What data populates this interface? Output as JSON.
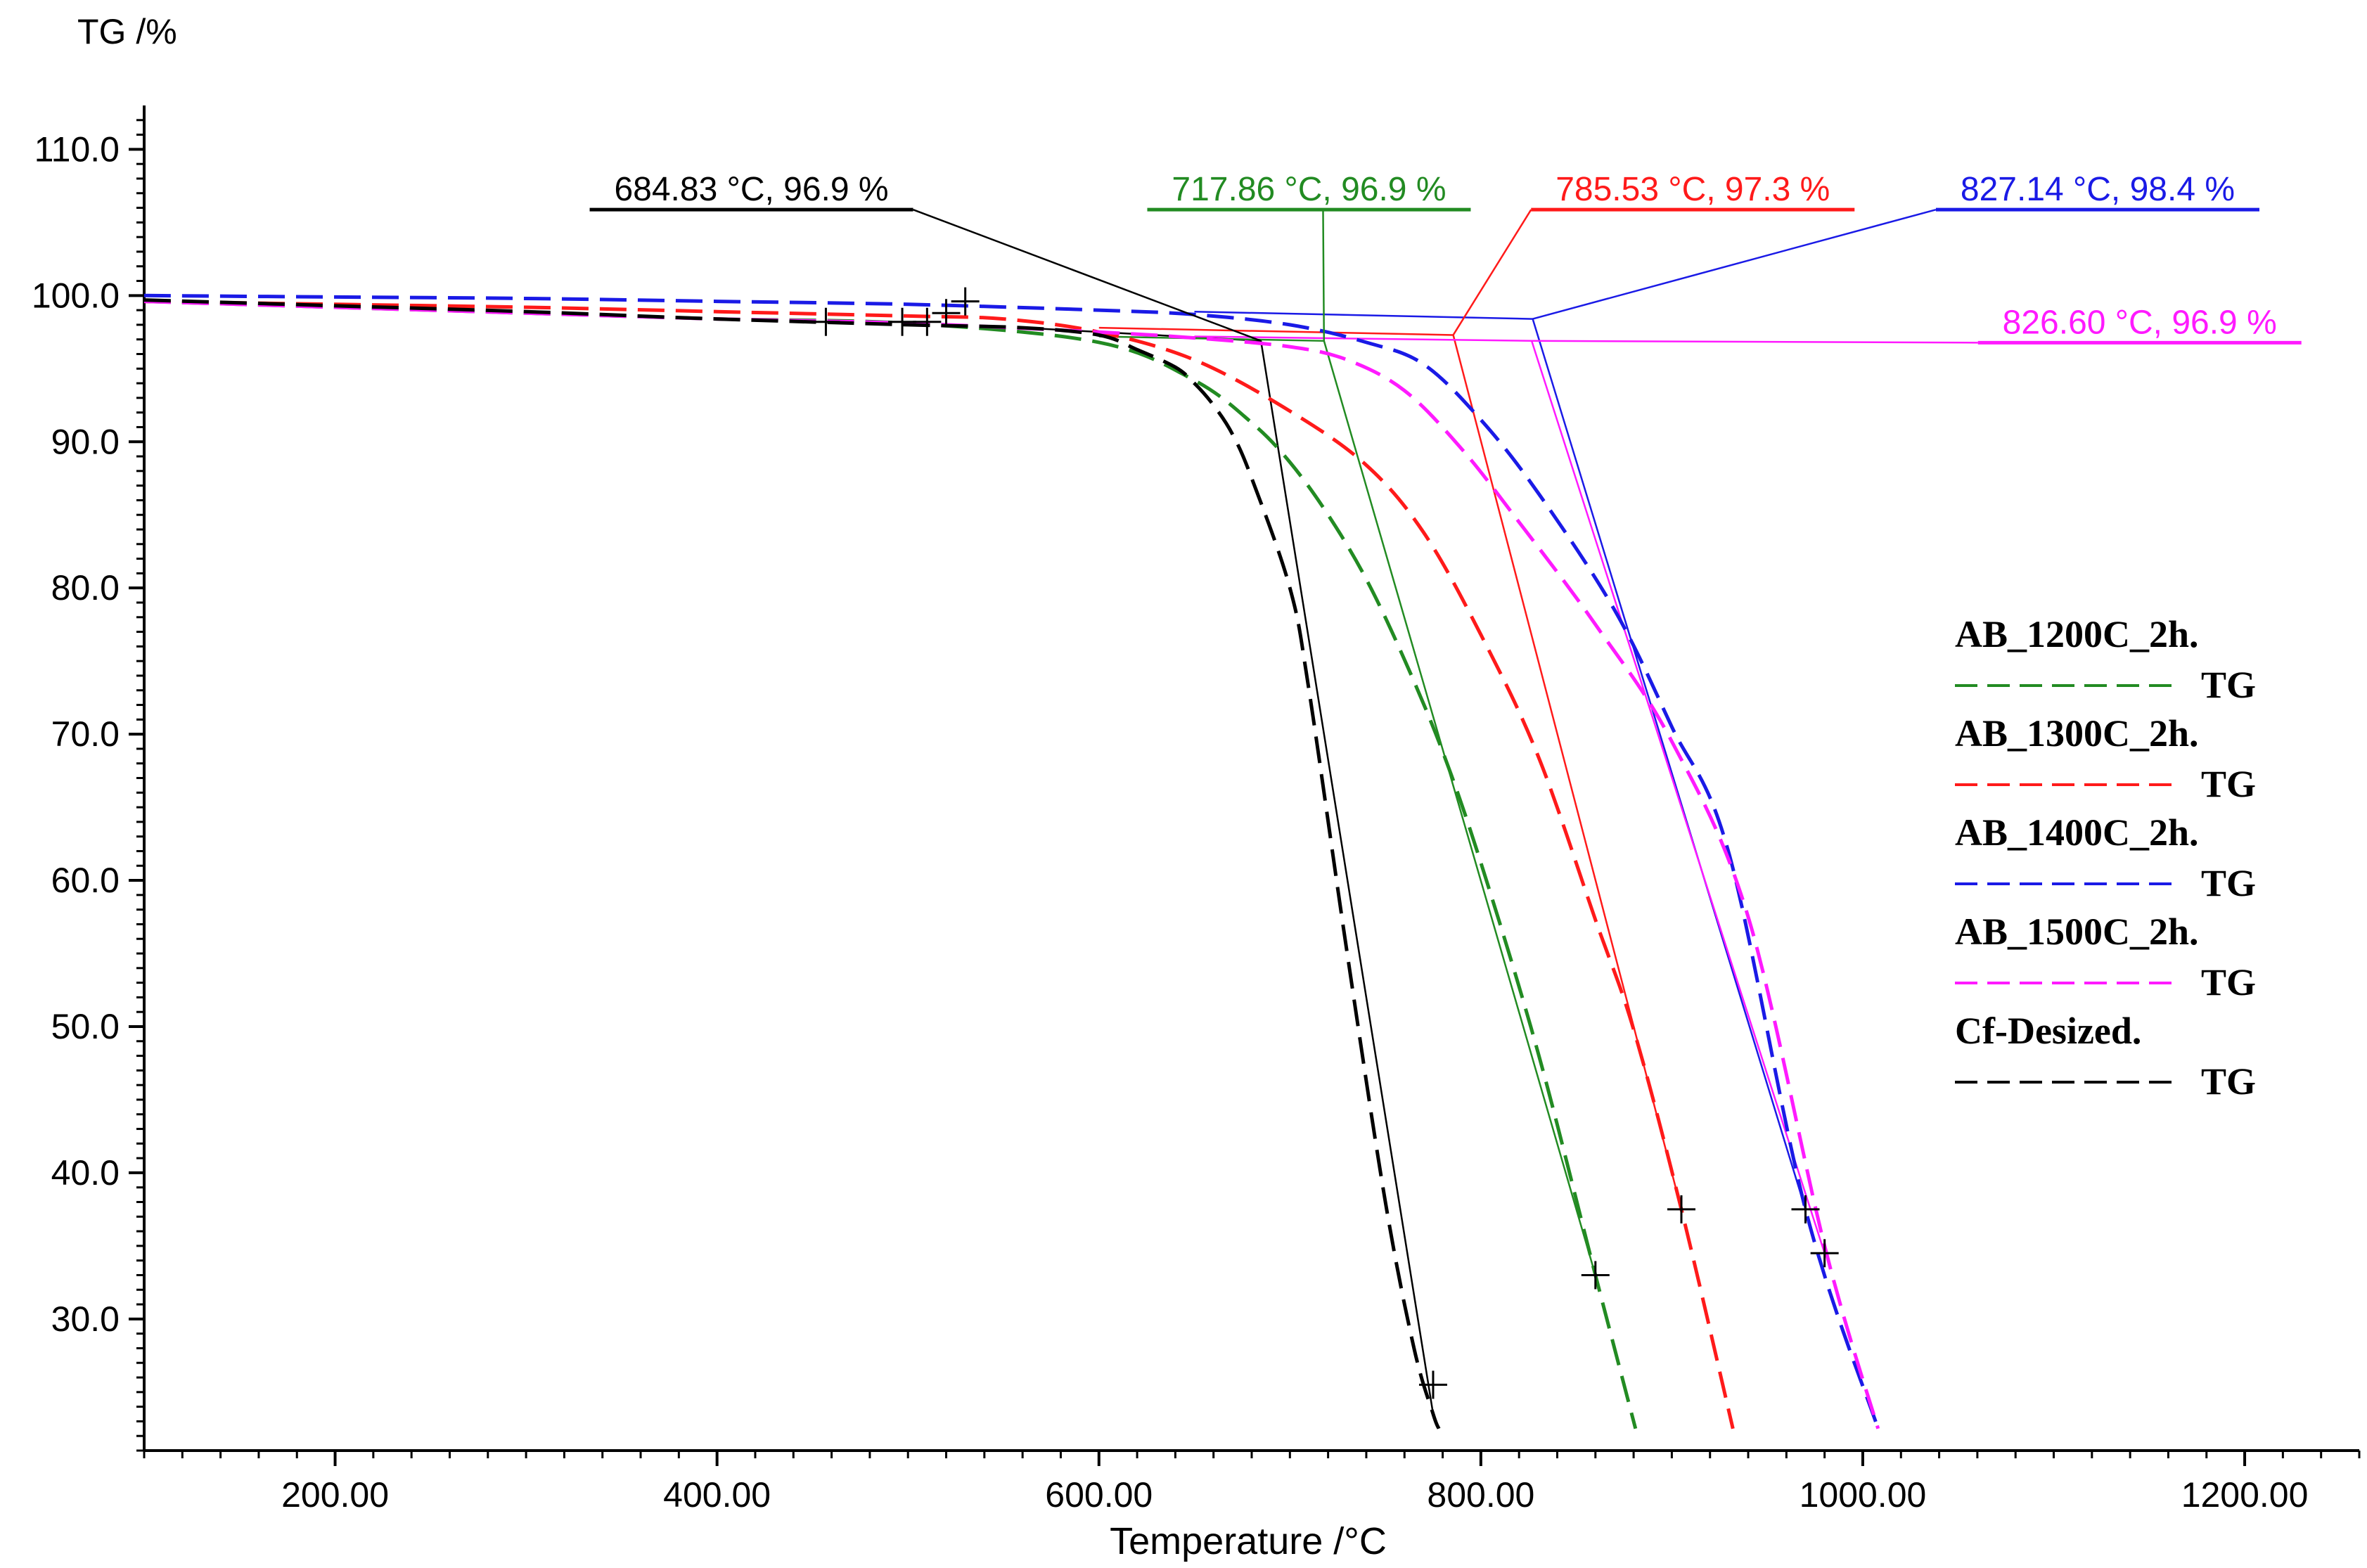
{
  "chart_data": {
    "type": "line",
    "ylabel": "TG /%",
    "xlabel": "Temperature /°C",
    "xlim": [
      100,
      1260
    ],
    "ylim": [
      21,
      113
    ],
    "x_ticks": [
      "200.00",
      "400.00",
      "600.00",
      "800.00",
      "1000.00",
      "1200.00"
    ],
    "x_tick_values": [
      200,
      400,
      600,
      800,
      1000,
      1200
    ],
    "y_ticks": [
      "110.0",
      "100.0",
      "90.0",
      "80.0",
      "70.0",
      "60.0",
      "50.0",
      "40.0",
      "30.0"
    ],
    "y_tick_values": [
      110,
      100,
      90,
      80,
      70,
      60,
      50,
      40,
      30
    ],
    "grid": false,
    "legend_position": "right",
    "series": [
      {
        "name": "AB_1200C_2h.",
        "legend_suffix": "TG",
        "color": "#228B22",
        "x": [
          100,
          200,
          300,
          400,
          500,
          600,
          650,
          680,
          700,
          720,
          740,
          760,
          780,
          800,
          830,
          860,
          881
        ],
        "y": [
          99.6,
          99.2,
          98.8,
          98.4,
          98.1,
          96.8,
          94.2,
          91.3,
          88.6,
          85.0,
          80.6,
          75.1,
          68.8,
          61.2,
          48.2,
          33.0,
          22.5
        ]
      },
      {
        "name": "AB_1300C_2h.",
        "legend_suffix": "TG",
        "color": "#FF1A1A",
        "x": [
          100,
          200,
          300,
          400,
          500,
          550,
          600,
          650,
          700,
          740,
          770,
          800,
          830,
          860,
          880,
          905,
          932
        ],
        "y": [
          99.6,
          99.4,
          99.2,
          98.9,
          98.6,
          98.4,
          97.5,
          95.6,
          92.1,
          88.4,
          83.8,
          76.8,
          68.5,
          57.3,
          49.8,
          37.5,
          22.5
        ]
      },
      {
        "name": "AB_1400C_2h.",
        "legend_suffix": "TG",
        "color": "#1A1AE6",
        "x": [
          100,
          200,
          300,
          400,
          500,
          600,
          650,
          700,
          740,
          770,
          800,
          830,
          870,
          900,
          930,
          970,
          1008
        ],
        "y": [
          100.0,
          99.9,
          99.8,
          99.6,
          99.4,
          99.0,
          98.7,
          98.0,
          96.8,
          95.3,
          91.5,
          86.5,
          78.5,
          70.5,
          61.8,
          37.5,
          22.5
        ]
      },
      {
        "name": "AB_1500C_2h.",
        "legend_suffix": "TG",
        "color": "#FF1AFF",
        "x": [
          100,
          200,
          300,
          400,
          500,
          600,
          650,
          700,
          730,
          760,
          790,
          820,
          860,
          900,
          940,
          980,
          1008
        ],
        "y": [
          99.6,
          99.2,
          98.8,
          98.4,
          98.1,
          97.5,
          97.1,
          96.5,
          95.6,
          93.5,
          89.5,
          84.5,
          77.5,
          69.5,
          57.5,
          35.0,
          22.5
        ]
      },
      {
        "name": "Cf-Desized.",
        "legend_suffix": "TG",
        "color": "#000000",
        "x": [
          100,
          200,
          300,
          400,
          500,
          560,
          600,
          620,
          640,
          650,
          660,
          670,
          680,
          700,
          710,
          730,
          750,
          765,
          775,
          778
        ],
        "y": [
          99.7,
          99.3,
          98.9,
          98.4,
          98.0,
          97.8,
          97.3,
          96.3,
          95.1,
          94.0,
          92.5,
          90.5,
          87.5,
          80.0,
          73.0,
          55.0,
          38.0,
          28.0,
          23.5,
          22.5
        ]
      }
    ],
    "annotations": [
      {
        "text": "684.83 °C, 96.9 %",
        "x": 684.83,
        "y": 96.9,
        "color": "#000000",
        "label_x": 418,
        "label_y": 106.5
      },
      {
        "text": "717.86 °C, 96.9 %",
        "x": 717.86,
        "y": 96.9,
        "color": "#228B22",
        "label_x": 710,
        "label_y": 106.5
      },
      {
        "text": "785.53 °C, 97.3 %",
        "x": 785.53,
        "y": 97.3,
        "color": "#FF1A1A",
        "label_x": 911,
        "label_y": 106.5
      },
      {
        "text": "827.14 °C, 98.4 %",
        "x": 827.14,
        "y": 98.4,
        "color": "#1A1AE6",
        "label_x": 1123,
        "label_y": 106.5
      },
      {
        "text": "826.60 °C, 96.9 %",
        "x": 826.6,
        "y": 96.9,
        "color": "#FF1AFF",
        "label_x": 1145,
        "label_y": 97.4
      }
    ],
    "tangents": [
      {
        "color": "#000000",
        "points": [
          [
            560,
            97.8
          ],
          [
            684.83,
            96.9
          ],
          [
            775,
            23.5
          ]
        ]
      },
      {
        "color": "#228B22",
        "points": [
          [
            600,
            97.2
          ],
          [
            717.86,
            96.9
          ],
          [
            860,
            33.0
          ]
        ]
      },
      {
        "color": "#FF1A1A",
        "points": [
          [
            600,
            97.8
          ],
          [
            785.53,
            97.3
          ],
          [
            905,
            37.5
          ]
        ]
      },
      {
        "color": "#1A1AE6",
        "points": [
          [
            650,
            98.9
          ],
          [
            827.14,
            98.4
          ],
          [
            970,
            37.5
          ]
        ]
      },
      {
        "color": "#FF1AFF",
        "points": [
          [
            650,
            97.2
          ],
          [
            826.6,
            96.9
          ],
          [
            980,
            34.5
          ]
        ]
      }
    ],
    "cross_markers": [
      [
        457,
        98.2
      ],
      [
        497,
        98.2
      ],
      [
        510,
        98.2
      ],
      [
        520,
        98.8
      ],
      [
        530,
        99.6
      ],
      [
        775,
        25.5
      ],
      [
        860,
        33.0
      ],
      [
        905,
        37.5
      ],
      [
        970,
        37.5
      ],
      [
        980,
        34.5
      ]
    ]
  }
}
